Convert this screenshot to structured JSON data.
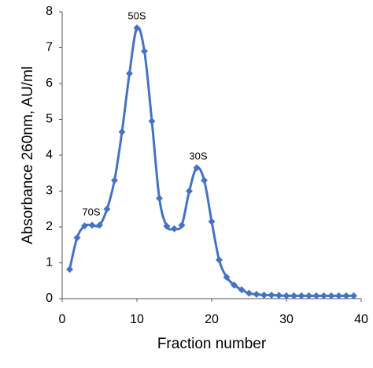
{
  "chart_data": {
    "type": "line",
    "y_label": "Absorbance 260nm, AU/ml",
    "x_label": "Fraction number",
    "annotations": [
      "70S",
      "50S",
      "30S"
    ],
    "x": [
      1,
      2,
      3,
      4,
      5,
      6,
      7,
      8,
      9,
      10,
      11,
      12,
      13,
      14,
      15,
      16,
      17,
      18,
      19,
      20,
      21,
      22,
      23,
      24,
      25,
      26,
      27,
      28,
      29,
      30,
      31,
      32,
      33,
      34,
      35,
      36,
      37,
      38,
      39
    ],
    "values": [
      0.82,
      1.7,
      2.03,
      2.05,
      2.05,
      2.5,
      3.3,
      4.65,
      6.28,
      7.55,
      6.9,
      4.95,
      2.8,
      2.02,
      1.95,
      2.05,
      3.0,
      3.65,
      3.3,
      2.15,
      1.08,
      0.6,
      0.38,
      0.25,
      0.15,
      0.12,
      0.1,
      0.1,
      0.09,
      0.08,
      0.08,
      0.08,
      0.08,
      0.08,
      0.08,
      0.08,
      0.08,
      0.08,
      0.08
    ],
    "color": "#4472c4",
    "xlim": [
      0,
      40
    ],
    "xticks": [
      0,
      10,
      20,
      30,
      40
    ],
    "ylim": [
      0,
      8
    ],
    "yticks": [
      0,
      1,
      2,
      3,
      4,
      5,
      6,
      7,
      8
    ],
    "grid": false
  }
}
